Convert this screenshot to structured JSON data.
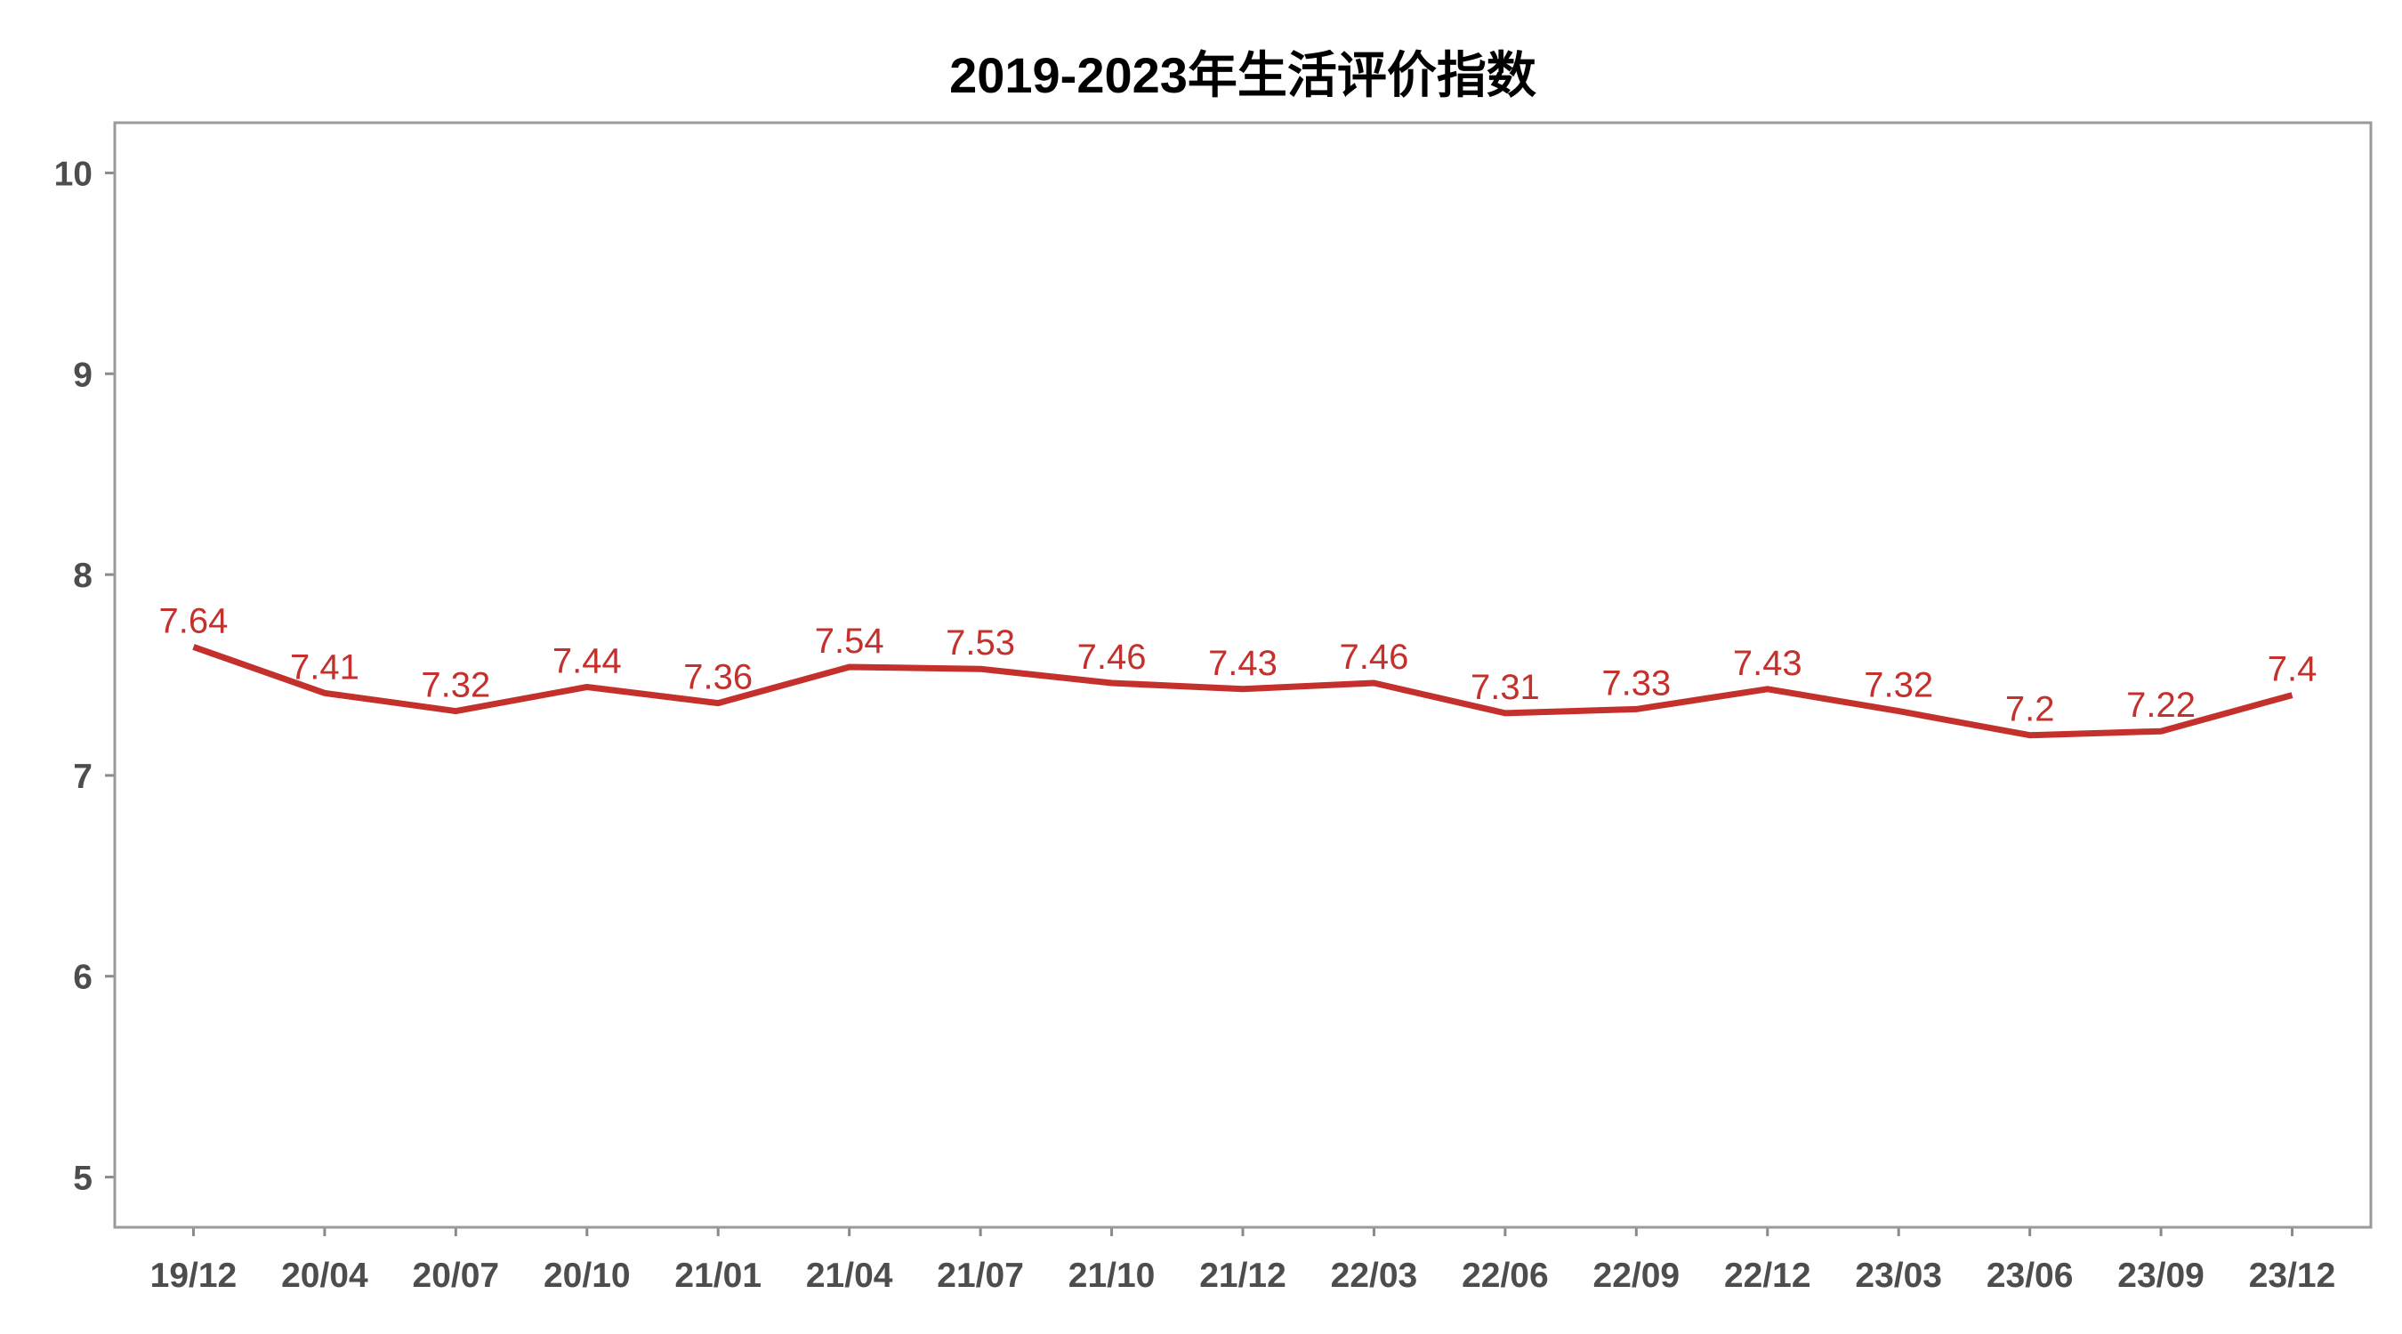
{
  "chart_data": {
    "type": "line",
    "title": "2019-2023年生活评价指数",
    "xlabel": "",
    "ylabel": "",
    "categories": [
      "19/12",
      "20/04",
      "20/07",
      "20/10",
      "21/01",
      "21/04",
      "21/07",
      "21/10",
      "21/12",
      "22/03",
      "22/06",
      "22/09",
      "22/12",
      "23/03",
      "23/06",
      "23/09",
      "23/12"
    ],
    "values": [
      7.64,
      7.41,
      7.32,
      7.44,
      7.36,
      7.54,
      7.53,
      7.46,
      7.43,
      7.46,
      7.31,
      7.33,
      7.43,
      7.32,
      7.2,
      7.22,
      7.4
    ],
    "ylim": [
      5,
      10
    ],
    "y_ticks": [
      5,
      6,
      7,
      8,
      9,
      10
    ],
    "grid": false,
    "legend": "none",
    "data_labels": true,
    "colors": {
      "line": "#c4302b",
      "data_label": "#c4302b",
      "axis_text": "#4d4d4d",
      "title": "#000000",
      "panel_border": "#9a9a9a",
      "tick": "#8a8a8a"
    }
  }
}
